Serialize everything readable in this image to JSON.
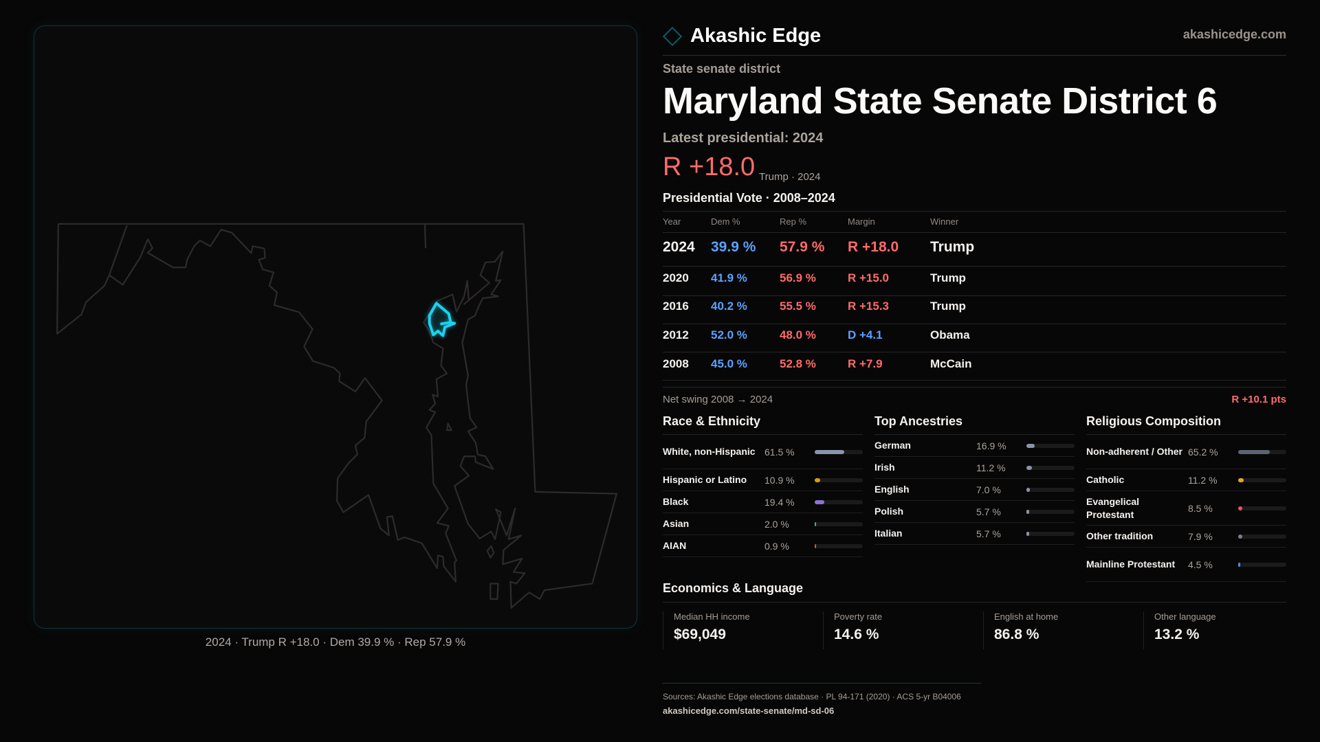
{
  "brand": {
    "name": "Akashic Edge",
    "site": "akashicedge.com",
    "logo_icon": "diamond-outline-icon"
  },
  "map": {
    "caption": "2024 · Trump R +18.0 · Dem 39.9 % · Rep 57.9 %",
    "highlight_color": "#19d3f0"
  },
  "header": {
    "kicker": "State senate district",
    "title": "Maryland State Senate District 6",
    "latest": "Latest presidential: 2024",
    "margin": "R +18.0",
    "margin_sub": "Trump · 2024"
  },
  "table": {
    "title": "Presidential Vote · 2008–2024",
    "headers": [
      "Year",
      "Dem %",
      "Rep %",
      "Margin",
      "Winner"
    ],
    "rows": [
      {
        "year": "2024",
        "dem": "39.9 %",
        "rep": "57.9 %",
        "margin": "R +18.0",
        "party": "R",
        "winner": "Trump"
      },
      {
        "year": "2020",
        "dem": "41.9 %",
        "rep": "56.9 %",
        "margin": "R +15.0",
        "party": "R",
        "winner": "Trump"
      },
      {
        "year": "2016",
        "dem": "40.2 %",
        "rep": "55.5 %",
        "margin": "R +15.3",
        "party": "R",
        "winner": "Trump"
      },
      {
        "year": "2012",
        "dem": "52.0 %",
        "rep": "48.0 %",
        "margin": "D +4.1",
        "party": "D",
        "winner": "Obama"
      },
      {
        "year": "2008",
        "dem": "45.0 %",
        "rep": "52.8 %",
        "margin": "R +7.9",
        "party": "R",
        "winner": "McCain"
      }
    ]
  },
  "swing": {
    "label": "Net swing 2008 → 2024",
    "value": "R +10.1 pts"
  },
  "colors": {
    "dem": "#5aa2ff",
    "rep": "#ff6b6b"
  },
  "sections": [
    {
      "title": "Race & Ethnicity",
      "items": [
        {
          "label": "White, non-Hispanic",
          "value": "61.5 %",
          "pct": 61.5,
          "color": "#8a94a8"
        },
        {
          "label": "Hispanic or Latino",
          "value": "10.9 %",
          "pct": 10.9,
          "color": "#d89a12"
        },
        {
          "label": "Black",
          "value": "19.4 %",
          "pct": 19.4,
          "color": "#8b70d8"
        },
        {
          "label": "Asian",
          "value": "2.0 %",
          "pct": 2.0,
          "color": "#2fb88a"
        },
        {
          "label": "AIAN",
          "value": "0.9 %",
          "pct": 0.9,
          "color": "#c8641e"
        }
      ]
    },
    {
      "title": "Top Ancestries",
      "items": [
        {
          "label": "German",
          "value": "16.9 %",
          "pct": 16.9,
          "color": "#8a94a8"
        },
        {
          "label": "Irish",
          "value": "11.2 %",
          "pct": 11.2,
          "color": "#8a94a8"
        },
        {
          "label": "English",
          "value": "7.0 %",
          "pct": 7.0,
          "color": "#8a94a8"
        },
        {
          "label": "Polish",
          "value": "5.7 %",
          "pct": 5.7,
          "color": "#8a94a8"
        },
        {
          "label": "Italian",
          "value": "5.7 %",
          "pct": 5.7,
          "color": "#8a94a8"
        }
      ]
    },
    {
      "title": "Religious Composition",
      "items": [
        {
          "label": "Non-adherent / Other",
          "value": "65.2 %",
          "pct": 65.2,
          "color": "#5c6270"
        },
        {
          "label": "Catholic",
          "value": "11.2 %",
          "pct": 11.2,
          "color": "#e0a820"
        },
        {
          "label": "Evangelical Protestant",
          "value": "8.5 %",
          "pct": 8.5,
          "color": "#e05a5a"
        },
        {
          "label": "Other tradition",
          "value": "7.9 %",
          "pct": 7.9,
          "color": "#7a7f8a"
        },
        {
          "label": "Mainline Protestant",
          "value": "4.5 %",
          "pct": 4.5,
          "color": "#4a8ee0"
        }
      ]
    }
  ],
  "economics": {
    "title": "Economics & Language",
    "stats": [
      {
        "label": "Median HH income",
        "value": "$69,049"
      },
      {
        "label": "Poverty rate",
        "value": "14.6 %"
      },
      {
        "label": "English at home",
        "value": "86.8 %"
      },
      {
        "label": "Other language",
        "value": "13.2 %"
      }
    ]
  },
  "footer": {
    "sources": "Sources: Akashic Edge elections database · PL 94-171 (2020) · ACS 5-yr B04006",
    "url": "akashicedge.com/state-senate/md-sd-06"
  }
}
